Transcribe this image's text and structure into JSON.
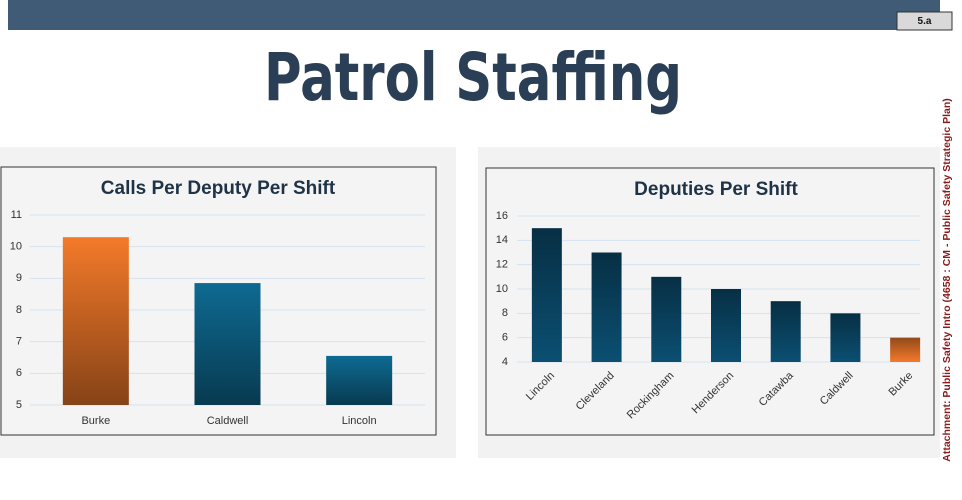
{
  "header": {
    "title": "Patrol Staffing",
    "badge": "5.a"
  },
  "side_note": "Attachment: Public Safety Intro  (4658 : CM - Public Safety Strategic Plan)",
  "chart_data": [
    {
      "type": "bar",
      "title": "Calls Per Deputy Per Shift",
      "categories": [
        "Burke",
        "Caldwell",
        "Lincoln"
      ],
      "values": [
        10.3,
        8.85,
        6.55
      ],
      "colors": [
        "#f47a2a",
        "#0e6a92",
        "#0e6a92"
      ],
      "ylim": [
        5,
        11
      ],
      "yticks": [
        5,
        6,
        7,
        8,
        9,
        10,
        11
      ],
      "grid": true
    },
    {
      "type": "bar",
      "title": "Deputies Per Shift",
      "categories": [
        "Lincoln",
        "Cleveland",
        "Rockingham",
        "Henderson",
        "Catawba",
        "Caldwell",
        "Burke"
      ],
      "values": [
        15,
        13,
        11,
        10,
        9,
        8,
        6
      ],
      "colors": [
        "#0b4f72",
        "#0b4f72",
        "#0b4f72",
        "#0b4f72",
        "#0b4f72",
        "#0b4f72",
        "#f47a2a"
      ],
      "ylim": [
        4,
        16
      ],
      "yticks": [
        4,
        6,
        8,
        10,
        12,
        14,
        16
      ],
      "grid": true
    }
  ]
}
